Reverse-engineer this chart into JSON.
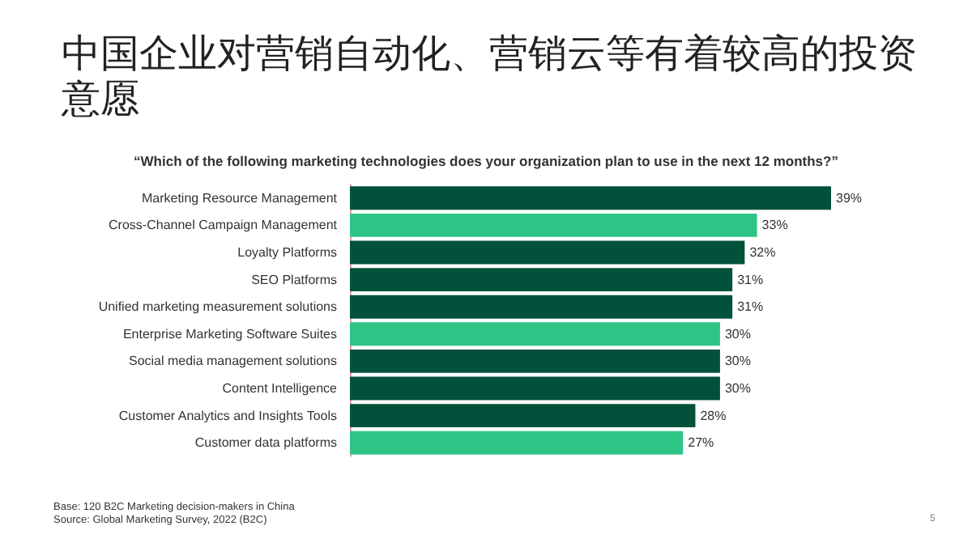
{
  "chart_data": {
    "type": "bar",
    "orientation": "horizontal",
    "title": "中国企业对营销自动化、营销云等有着较高的投资意愿",
    "subtitle": "“Which of the following marketing technologies does your organization plan to use in the next 12 months?”",
    "categories": [
      "Marketing Resource Management",
      "Cross-Channel Campaign Management",
      "Loyalty Platforms",
      "SEO Platforms",
      "Unified marketing measurement solutions",
      "Enterprise Marketing Software Suites",
      "Social media management solutions",
      "Content Intelligence",
      "Customer Analytics and Insights Tools",
      "Customer data platforms"
    ],
    "values": [
      39,
      33,
      32,
      31,
      31,
      30,
      30,
      30,
      28,
      27
    ],
    "value_labels": [
      "39%",
      "33%",
      "32%",
      "31%",
      "31%",
      "30%",
      "30%",
      "30%",
      "28%",
      "27%"
    ],
    "colors": [
      "#03513b",
      "#2ec486",
      "#03513b",
      "#03513b",
      "#03513b",
      "#2ec486",
      "#03513b",
      "#03513b",
      "#03513b",
      "#2ec486"
    ],
    "annotations": [
      "Base: 120 B2C Marketing decision-makers in China",
      "Source: Global Marketing Survey, 2022 (B2C)",
      "5"
    ]
  }
}
